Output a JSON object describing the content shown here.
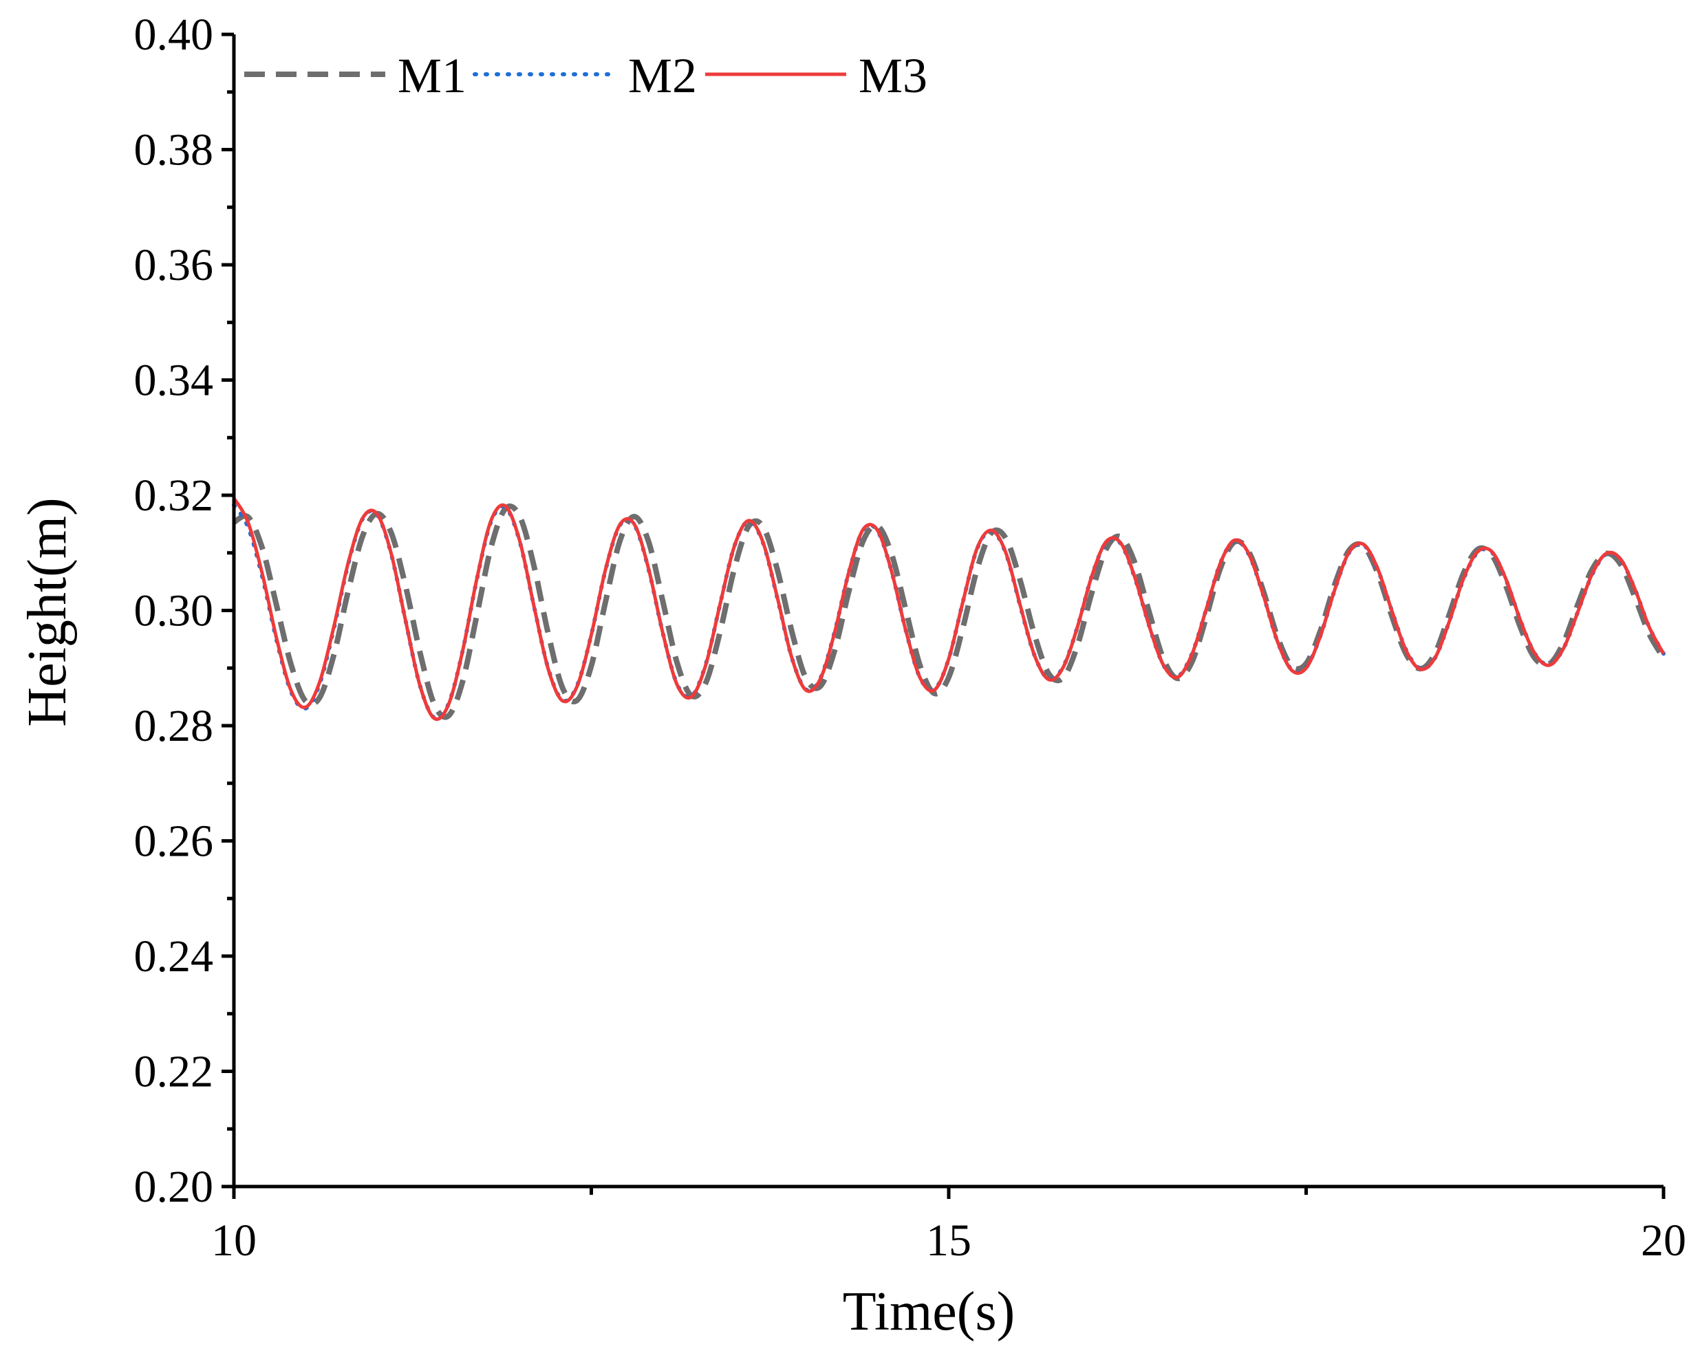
{
  "chart_data": {
    "type": "line",
    "title": "",
    "xlabel": "Time(s)",
    "ylabel": "Height(m)",
    "xlim": [
      10,
      20
    ],
    "ylim": [
      0.2,
      0.4
    ],
    "x_ticks": [
      "10",
      "15",
      "20"
    ],
    "y_ticks": [
      "0.20",
      "0.22",
      "0.24",
      "0.26",
      "0.28",
      "0.30",
      "0.32",
      "0.34",
      "0.36",
      "0.38",
      "0.40"
    ],
    "grid": false,
    "legend_position": "top-left",
    "x": [
      10.0,
      10.1,
      10.2,
      10.3,
      10.4,
      10.5,
      10.6,
      10.7,
      10.8,
      10.9,
      11.0,
      11.1,
      11.2,
      11.3,
      11.4,
      11.5,
      11.6,
      11.7,
      11.8,
      11.9,
      12.0,
      12.1,
      12.2,
      12.3,
      12.4,
      12.5,
      12.6,
      12.7,
      12.8,
      12.9,
      13.0,
      13.1,
      13.2,
      13.3,
      13.4,
      13.5,
      13.6,
      13.7,
      13.8,
      13.9,
      14.0,
      14.1,
      14.2,
      14.3,
      14.4,
      14.5,
      14.6,
      14.7,
      14.8,
      14.9,
      15.0,
      15.1,
      15.2,
      15.3,
      15.4,
      15.5,
      15.6,
      15.7,
      15.8,
      15.9,
      16.0,
      16.1,
      16.2,
      16.3,
      16.4,
      16.5,
      16.6,
      16.7,
      16.8,
      16.9,
      17.0,
      17.1,
      17.2,
      17.3,
      17.4,
      17.5,
      17.6,
      17.7,
      17.8,
      17.9,
      18.0,
      18.1,
      18.2,
      18.3,
      18.4,
      18.5,
      18.6,
      18.7,
      18.8,
      18.9,
      19.0,
      19.1,
      19.2,
      19.3,
      19.4,
      19.5,
      19.6,
      19.7,
      19.8,
      19.9,
      20.0
    ],
    "series": [
      {
        "name": "M1",
        "color": "#6e6e6e",
        "style": "dashed",
        "values": [
          0.3153,
          0.3162,
          0.3107,
          0.3007,
          0.2906,
          0.2843,
          0.2849,
          0.2924,
          0.3034,
          0.3129,
          0.3168,
          0.3135,
          0.3043,
          0.2929,
          0.2838,
          0.2817,
          0.2877,
          0.2993,
          0.3111,
          0.3177,
          0.3163,
          0.3076,
          0.2958,
          0.2865,
          0.2844,
          0.2904,
          0.3016,
          0.3121,
          0.3163,
          0.312,
          0.3016,
          0.2909,
          0.2852,
          0.2874,
          0.2962,
          0.3072,
          0.3146,
          0.3146,
          0.3072,
          0.2966,
          0.2883,
          0.2868,
          0.2929,
          0.3032,
          0.312,
          0.3147,
          0.3098,
          0.3001,
          0.2904,
          0.2856,
          0.2884,
          0.2971,
          0.3073,
          0.3135,
          0.3125,
          0.3052,
          0.2958,
          0.289,
          0.2883,
          0.2939,
          0.303,
          0.3106,
          0.3128,
          0.3084,
          0.2999,
          0.2917,
          0.2882,
          0.291,
          0.2987,
          0.3073,
          0.3119,
          0.3101,
          0.3034,
          0.2954,
          0.2903,
          0.2908,
          0.2965,
          0.3045,
          0.3104,
          0.3112,
          0.3065,
          0.299,
          0.2924,
          0.2899,
          0.2925,
          0.2992,
          0.3064,
          0.3106,
          0.3096,
          0.3041,
          0.297,
          0.2917,
          0.2907,
          0.2944,
          0.301,
          0.3071,
          0.3099,
          0.308,
          0.3023,
          0.2959,
          0.2918
        ]
      },
      {
        "name": "M2",
        "color": "#1f6fd6",
        "style": "dotted",
        "values": [
          0.3183,
          0.3144,
          0.3057,
          0.2947,
          0.2859,
          0.283,
          0.2873,
          0.297,
          0.3081,
          0.3159,
          0.3167,
          0.3098,
          0.2983,
          0.2871,
          0.2814,
          0.2837,
          0.293,
          0.3055,
          0.3155,
          0.3179,
          0.3119,
          0.3006,
          0.2898,
          0.2844,
          0.2869,
          0.2958,
          0.3071,
          0.3148,
          0.3149,
          0.3072,
          0.2961,
          0.2872,
          0.2851,
          0.2906,
          0.301,
          0.3111,
          0.3155,
          0.3118,
          0.3023,
          0.292,
          0.2863,
          0.2881,
          0.2961,
          0.3065,
          0.3139,
          0.3139,
          0.3068,
          0.2965,
          0.2883,
          0.2863,
          0.2916,
          0.3016,
          0.3108,
          0.3138,
          0.3099,
          0.3008,
          0.2922,
          0.2881,
          0.2902,
          0.2971,
          0.3059,
          0.3118,
          0.3117,
          0.3058,
          0.2975,
          0.2906,
          0.2885,
          0.2924,
          0.3001,
          0.3082,
          0.3121,
          0.3097,
          0.3027,
          0.2946,
          0.2897,
          0.2901,
          0.2956,
          0.3036,
          0.31,
          0.3114,
          0.3072,
          0.2999,
          0.2931,
          0.2899,
          0.2917,
          0.298,
          0.3054,
          0.3101,
          0.3101,
          0.3052,
          0.2982,
          0.2925,
          0.2906,
          0.2934,
          0.2997,
          0.3062,
          0.3098,
          0.3088,
          0.3037,
          0.2971,
          0.2925
        ]
      },
      {
        "name": "M3",
        "color": "#ee3b3b",
        "style": "solid",
        "values": [
          0.3195,
          0.3152,
          0.3062,
          0.295,
          0.2861,
          0.2832,
          0.2876,
          0.2973,
          0.3083,
          0.316,
          0.3168,
          0.3099,
          0.2983,
          0.2871,
          0.2813,
          0.2836,
          0.293,
          0.3056,
          0.3157,
          0.3181,
          0.312,
          0.3006,
          0.2897,
          0.2843,
          0.2868,
          0.2958,
          0.3072,
          0.3149,
          0.315,
          0.3073,
          0.2961,
          0.2871,
          0.285,
          0.2905,
          0.301,
          0.3111,
          0.3156,
          0.3119,
          0.3024,
          0.292,
          0.2862,
          0.288,
          0.296,
          0.3065,
          0.314,
          0.314,
          0.3068,
          0.2965,
          0.2883,
          0.2862,
          0.2916,
          0.3016,
          0.3109,
          0.3139,
          0.31,
          0.3009,
          0.2922,
          0.288,
          0.2901,
          0.2971,
          0.3059,
          0.3119,
          0.3118,
          0.3059,
          0.2975,
          0.2906,
          0.2884,
          0.2923,
          0.3001,
          0.3082,
          0.3122,
          0.3098,
          0.3027,
          0.2946,
          0.2896,
          0.29,
          0.2956,
          0.3036,
          0.3101,
          0.3115,
          0.3073,
          0.2999,
          0.293,
          0.2898,
          0.2917,
          0.298,
          0.3055,
          0.3102,
          0.3102,
          0.3053,
          0.2982,
          0.2925,
          0.2905,
          0.2934,
          0.2997,
          0.3063,
          0.3099,
          0.3089,
          0.3037,
          0.2971,
          0.2925
        ]
      }
    ]
  }
}
